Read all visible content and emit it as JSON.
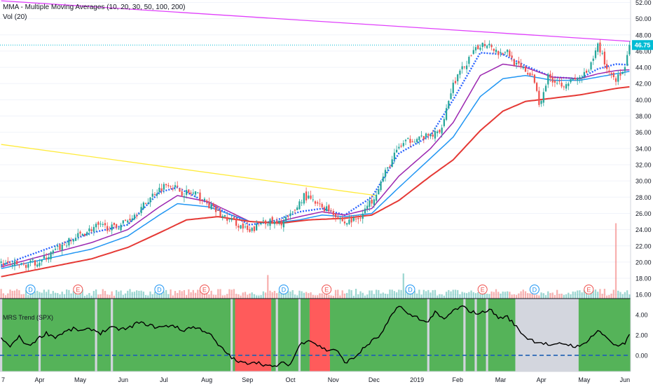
{
  "indicators": {
    "mma_label": "MMA - Multiple Moving Averages (10, 20, 30, 50, 100, 200)",
    "vol_label": "Vol (20)",
    "pane_label": "MRS Trend (SPX)"
  },
  "price_tag": "46.75",
  "colors": {
    "up": "#26a69a",
    "down": "#ef5350",
    "ma_fast": "#2962ff",
    "ma_mid": "#9c27b0",
    "ma_slow": "#2196f3",
    "ma_long": "#e53935",
    "trend_up": "#4caf50",
    "trend_down": "#ff5252",
    "trend_flat": "#d1d4dc",
    "resistance": "#e040fb",
    "downtrend": "#ffeb3b",
    "price_tag": "#00bcd4"
  },
  "chart_data": [
    {
      "type": "candlestick",
      "title": "MMA - Multiple Moving Averages (10, 20, 30, 50, 100, 200)",
      "xlabel": "",
      "ylabel": "",
      "x_ticks": [
        "7",
        "Apr",
        "May",
        "Jun",
        "Jul",
        "Aug",
        "Sep",
        "Oct",
        "Nov",
        "Dec",
        "2019",
        "Feb",
        "Mar",
        "Apr",
        "May",
        "Jun"
      ],
      "ylim": [
        15.5,
        52.3
      ],
      "y_ticks": [
        16.0,
        18.0,
        20.0,
        22.0,
        24.0,
        26.0,
        28.0,
        30.0,
        32.0,
        34.0,
        36.0,
        38.0,
        40.0,
        42.0,
        44.0,
        46.0,
        48.0,
        50.0,
        52.0
      ],
      "y_tick_labels": [
        "16.00",
        "18.00",
        "20.00",
        "22.00",
        "24.00",
        "26.00",
        "28.00",
        "30.00",
        "32.00",
        "34.00",
        "36.00",
        "38.00",
        "40.00",
        "42.00",
        "44.00",
        "46.00",
        "48.00",
        "50.00",
        "52.00"
      ],
      "last_price": 46.75,
      "close_anchors": [
        [
          0,
          19.8
        ],
        [
          10,
          19.6
        ],
        [
          18,
          20.2
        ],
        [
          26,
          21.8
        ],
        [
          34,
          23.2
        ],
        [
          42,
          24.4
        ],
        [
          50,
          24.2
        ],
        [
          56,
          25.2
        ],
        [
          62,
          26.6
        ],
        [
          68,
          28.6
        ],
        [
          74,
          29.8
        ],
        [
          80,
          28.6
        ],
        [
          86,
          28.4
        ],
        [
          92,
          27.0
        ],
        [
          98,
          25.6
        ],
        [
          104,
          24.8
        ],
        [
          110,
          23.6
        ],
        [
          116,
          25.2
        ],
        [
          122,
          24.6
        ],
        [
          128,
          25.6
        ],
        [
          134,
          28.2
        ],
        [
          140,
          27.0
        ],
        [
          146,
          26.4
        ],
        [
          152,
          24.8
        ],
        [
          158,
          25.4
        ],
        [
          164,
          27.6
        ],
        [
          170,
          31.0
        ],
        [
          176,
          34.2
        ],
        [
          182,
          35.2
        ],
        [
          188,
          35.4
        ],
        [
          194,
          36.0
        ],
        [
          200,
          42.0
        ],
        [
          206,
          44.6
        ],
        [
          212,
          46.8
        ],
        [
          216,
          47.0
        ],
        [
          220,
          45.8
        ],
        [
          224,
          46.0
        ],
        [
          228,
          44.2
        ],
        [
          232,
          43.6
        ],
        [
          236,
          42.4
        ],
        [
          238,
          39.5
        ],
        [
          242,
          42.8
        ],
        [
          248,
          42.0
        ],
        [
          254,
          42.4
        ],
        [
          260,
          43.4
        ],
        [
          264,
          46.8
        ],
        [
          266,
          45.5
        ],
        [
          268,
          43.8
        ],
        [
          272,
          42.6
        ],
        [
          276,
          43.6
        ],
        [
          278,
          46.75
        ]
      ],
      "moving_averages": [
        {
          "name": "MA 10",
          "anchors": [
            [
              0,
              19.6
            ],
            [
              40,
              23.6
            ],
            [
              56,
              24.6
            ],
            [
              70,
              28.6
            ],
            [
              78,
              29.2
            ],
            [
              92,
              27.2
            ],
            [
              110,
              24.6
            ],
            [
              120,
              25.0
            ],
            [
              132,
              26.2
            ],
            [
              142,
              26.6
            ],
            [
              152,
              25.8
            ],
            [
              164,
              28.0
            ],
            [
              176,
              33.4
            ],
            [
              190,
              35.6
            ],
            [
              200,
              40.0
            ],
            [
              212,
              45.8
            ],
            [
              222,
              45.6
            ],
            [
              232,
              44.2
            ],
            [
              244,
              42.8
            ],
            [
              256,
              42.6
            ],
            [
              264,
              43.8
            ],
            [
              272,
              44.4
            ],
            [
              278,
              44.3
            ]
          ]
        },
        {
          "name": "MA 30",
          "anchors": [
            [
              0,
              19.4
            ],
            [
              40,
              22.4
            ],
            [
              56,
              24.0
            ],
            [
              70,
              26.8
            ],
            [
              78,
              28.2
            ],
            [
              92,
              27.4
            ],
            [
              110,
              25.0
            ],
            [
              120,
              24.8
            ],
            [
              132,
              25.6
            ],
            [
              142,
              26.2
            ],
            [
              152,
              25.8
            ],
            [
              164,
              26.6
            ],
            [
              176,
              30.6
            ],
            [
              190,
              34.0
            ],
            [
              200,
              37.2
            ],
            [
              212,
              43.0
            ],
            [
              222,
              44.4
            ],
            [
              232,
              44.0
            ],
            [
              244,
              42.8
            ],
            [
              256,
              42.6
            ],
            [
              264,
              43.2
            ],
            [
              272,
              43.6
            ],
            [
              278,
              43.7
            ]
          ]
        },
        {
          "name": "MA 50",
          "anchors": [
            [
              0,
              19.2
            ],
            [
              40,
              21.6
            ],
            [
              56,
              23.2
            ],
            [
              70,
              25.8
            ],
            [
              78,
              27.2
            ],
            [
              92,
              26.8
            ],
            [
              110,
              25.0
            ],
            [
              120,
              24.8
            ],
            [
              132,
              25.2
            ],
            [
              142,
              25.8
            ],
            [
              152,
              25.6
            ],
            [
              164,
              26.0
            ],
            [
              176,
              29.2
            ],
            [
              190,
              32.8
            ],
            [
              200,
              35.4
            ],
            [
              212,
              40.4
            ],
            [
              222,
              42.6
            ],
            [
              232,
              43.0
            ],
            [
              244,
              42.4
            ],
            [
              256,
              42.4
            ],
            [
              264,
              42.8
            ],
            [
              272,
              43.2
            ],
            [
              278,
              43.5
            ]
          ]
        },
        {
          "name": "MA 100",
          "anchors": [
            [
              0,
              18.2
            ],
            [
              40,
              20.4
            ],
            [
              56,
              21.8
            ],
            [
              70,
              23.6
            ],
            [
              82,
              25.2
            ],
            [
              96,
              25.6
            ],
            [
              110,
              25.0
            ],
            [
              124,
              24.8
            ],
            [
              136,
              25.2
            ],
            [
              152,
              25.4
            ],
            [
              164,
              25.8
            ],
            [
              176,
              27.6
            ],
            [
              190,
              30.6
            ],
            [
              200,
              32.6
            ],
            [
              212,
              36.2
            ],
            [
              222,
              38.6
            ],
            [
              232,
              39.8
            ],
            [
              244,
              40.2
            ],
            [
              256,
              40.6
            ],
            [
              264,
              41.0
            ],
            [
              272,
              41.4
            ],
            [
              278,
              41.6
            ]
          ]
        }
      ],
      "trendlines": [
        {
          "name": "resistance",
          "from": [
            0,
            52.2
          ],
          "to": [
            278,
            47.2
          ]
        },
        {
          "name": "downtrend",
          "from": [
            0,
            34.5
          ],
          "to": [
            166,
            28.2
          ]
        }
      ],
      "event_markers": [
        {
          "label": "D",
          "index": 13
        },
        {
          "label": "E",
          "index": 34
        },
        {
          "label": "D",
          "index": 70
        },
        {
          "label": "E",
          "index": 90
        },
        {
          "label": "D",
          "index": 125
        },
        {
          "label": "E",
          "index": 144
        },
        {
          "label": "D",
          "index": 181
        },
        {
          "label": "E",
          "index": 213
        },
        {
          "label": "D",
          "index": 236
        },
        {
          "label": "E",
          "index": 260
        }
      ],
      "volume_spikes": [
        {
          "index": 272,
          "ratio": 4.8
        },
        {
          "index": 118,
          "ratio": 1.5
        },
        {
          "index": 178,
          "ratio": 1.6
        }
      ]
    },
    {
      "type": "line",
      "title": "MRS Trend (SPX)",
      "xlabel": "",
      "ylabel": "",
      "ylim": [
        -1.6,
        5.6
      ],
      "y_ticks": [
        0.0,
        2.0,
        4.0
      ],
      "y_tick_labels": [
        "0.00",
        "2.00",
        "4.00"
      ],
      "zero_line": 0.0,
      "series_anchors": [
        [
          0,
          1.6
        ],
        [
          4,
          0.9
        ],
        [
          8,
          1.8
        ],
        [
          12,
          0.9
        ],
        [
          16,
          1.6
        ],
        [
          20,
          2.2
        ],
        [
          24,
          1.8
        ],
        [
          28,
          2.3
        ],
        [
          32,
          2.6
        ],
        [
          36,
          2.4
        ],
        [
          40,
          2.6
        ],
        [
          44,
          2.2
        ],
        [
          48,
          2.7
        ],
        [
          52,
          2.6
        ],
        [
          56,
          2.6
        ],
        [
          60,
          3.2
        ],
        [
          64,
          3.1
        ],
        [
          68,
          2.8
        ],
        [
          72,
          2.8
        ],
        [
          76,
          3.0
        ],
        [
          80,
          2.4
        ],
        [
          84,
          2.8
        ],
        [
          88,
          2.6
        ],
        [
          92,
          2.2
        ],
        [
          96,
          1.0
        ],
        [
          100,
          0.2
        ],
        [
          104,
          -0.6
        ],
        [
          108,
          -0.8
        ],
        [
          112,
          -0.6
        ],
        [
          116,
          -0.9
        ],
        [
          120,
          -1.2
        ],
        [
          124,
          -0.8
        ],
        [
          128,
          -0.9
        ],
        [
          132,
          1.0
        ],
        [
          136,
          1.6
        ],
        [
          140,
          1.0
        ],
        [
          144,
          0.5
        ],
        [
          148,
          0.6
        ],
        [
          152,
          -0.7
        ],
        [
          156,
          -0.3
        ],
        [
          160,
          0.6
        ],
        [
          164,
          1.4
        ],
        [
          168,
          2.0
        ],
        [
          172,
          3.6
        ],
        [
          176,
          5.0
        ],
        [
          180,
          4.0
        ],
        [
          184,
          3.8
        ],
        [
          188,
          3.2
        ],
        [
          192,
          4.2
        ],
        [
          196,
          3.5
        ],
        [
          200,
          4.4
        ],
        [
          204,
          4.8
        ],
        [
          208,
          4.3
        ],
        [
          212,
          4.1
        ],
        [
          216,
          4.6
        ],
        [
          220,
          3.7
        ],
        [
          224,
          3.8
        ],
        [
          228,
          2.8
        ],
        [
          232,
          1.8
        ],
        [
          236,
          1.4
        ],
        [
          240,
          1.2
        ],
        [
          244,
          0.9
        ],
        [
          248,
          1.2
        ],
        [
          252,
          1.0
        ],
        [
          256,
          0.8
        ],
        [
          260,
          1.6
        ],
        [
          264,
          2.4
        ],
        [
          268,
          1.8
        ],
        [
          272,
          0.9
        ],
        [
          276,
          1.1
        ],
        [
          278,
          2.0
        ]
      ],
      "trend_regimes": [
        {
          "state": "up",
          "from": 0,
          "to": 104
        },
        {
          "state": "down",
          "from": 104,
          "to": 120
        },
        {
          "state": "up",
          "from": 120,
          "to": 137
        },
        {
          "state": "down",
          "from": 137,
          "to": 146
        },
        {
          "state": "up",
          "from": 146,
          "to": 228
        },
        {
          "state": "flat",
          "from": 228,
          "to": 256
        },
        {
          "state": "up",
          "from": 256,
          "to": 279
        }
      ]
    }
  ]
}
